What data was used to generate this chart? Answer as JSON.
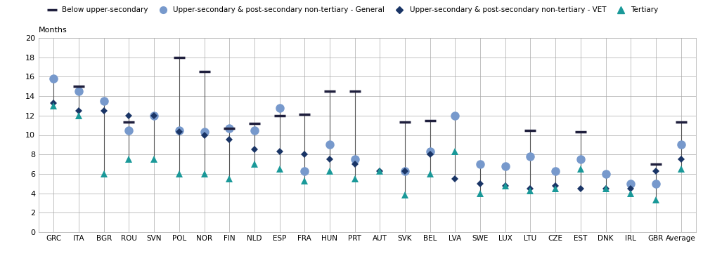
{
  "countries": [
    "GRC",
    "ITA",
    "BGR",
    "ROU",
    "SVN",
    "POL",
    "NOR",
    "FIN",
    "NLD",
    "ESP",
    "FRA",
    "HUN",
    "PRT",
    "AUT",
    "SVK",
    "BEL",
    "LVA",
    "SWE",
    "LUX",
    "LTU",
    "CZE",
    "EST",
    "DNK",
    "IRL",
    "GBR",
    "Average"
  ],
  "below_upper_secondary": [
    null,
    15.0,
    null,
    11.3,
    null,
    18.0,
    16.5,
    10.7,
    11.2,
    12.0,
    12.1,
    14.5,
    14.5,
    null,
    11.3,
    11.5,
    null,
    null,
    null,
    10.5,
    null,
    10.3,
    null,
    null,
    7.0,
    11.3
  ],
  "general": [
    15.8,
    14.5,
    13.5,
    10.5,
    12.0,
    10.5,
    10.3,
    10.7,
    10.5,
    12.8,
    6.3,
    9.0,
    7.5,
    null,
    6.3,
    8.3,
    12.0,
    7.0,
    6.8,
    7.8,
    6.3,
    7.5,
    6.0,
    5.0,
    5.0,
    9.0
  ],
  "vet": [
    13.3,
    12.5,
    12.5,
    12.0,
    12.0,
    10.3,
    10.0,
    9.5,
    8.5,
    8.3,
    8.0,
    7.5,
    7.0,
    6.3,
    6.3,
    8.0,
    5.5,
    5.0,
    4.8,
    4.5,
    4.8,
    4.5,
    4.5,
    4.5,
    6.3,
    7.5
  ],
  "tertiary": [
    13.0,
    12.0,
    6.0,
    7.5,
    7.5,
    6.0,
    6.0,
    5.5,
    7.0,
    6.5,
    5.3,
    6.3,
    5.5,
    6.3,
    3.8,
    6.0,
    8.3,
    4.0,
    4.8,
    4.3,
    4.5,
    6.5,
    4.5,
    4.0,
    3.3,
    6.5
  ],
  "color_below": "#1f1f3d",
  "color_general": "#7799cc",
  "color_vet": "#1a3566",
  "color_tertiary": "#1a9999",
  "ylim": [
    0,
    20
  ],
  "yticks": [
    0,
    2,
    4,
    6,
    8,
    10,
    12,
    14,
    16,
    18,
    20
  ],
  "ylabel": "Months",
  "legend_labels": [
    "Below upper-secondary",
    "Upper-secondary & post-secondary non-tertiary - General",
    "Upper-secondary & post-secondary non-tertiary - VET",
    "Tertiary"
  ]
}
